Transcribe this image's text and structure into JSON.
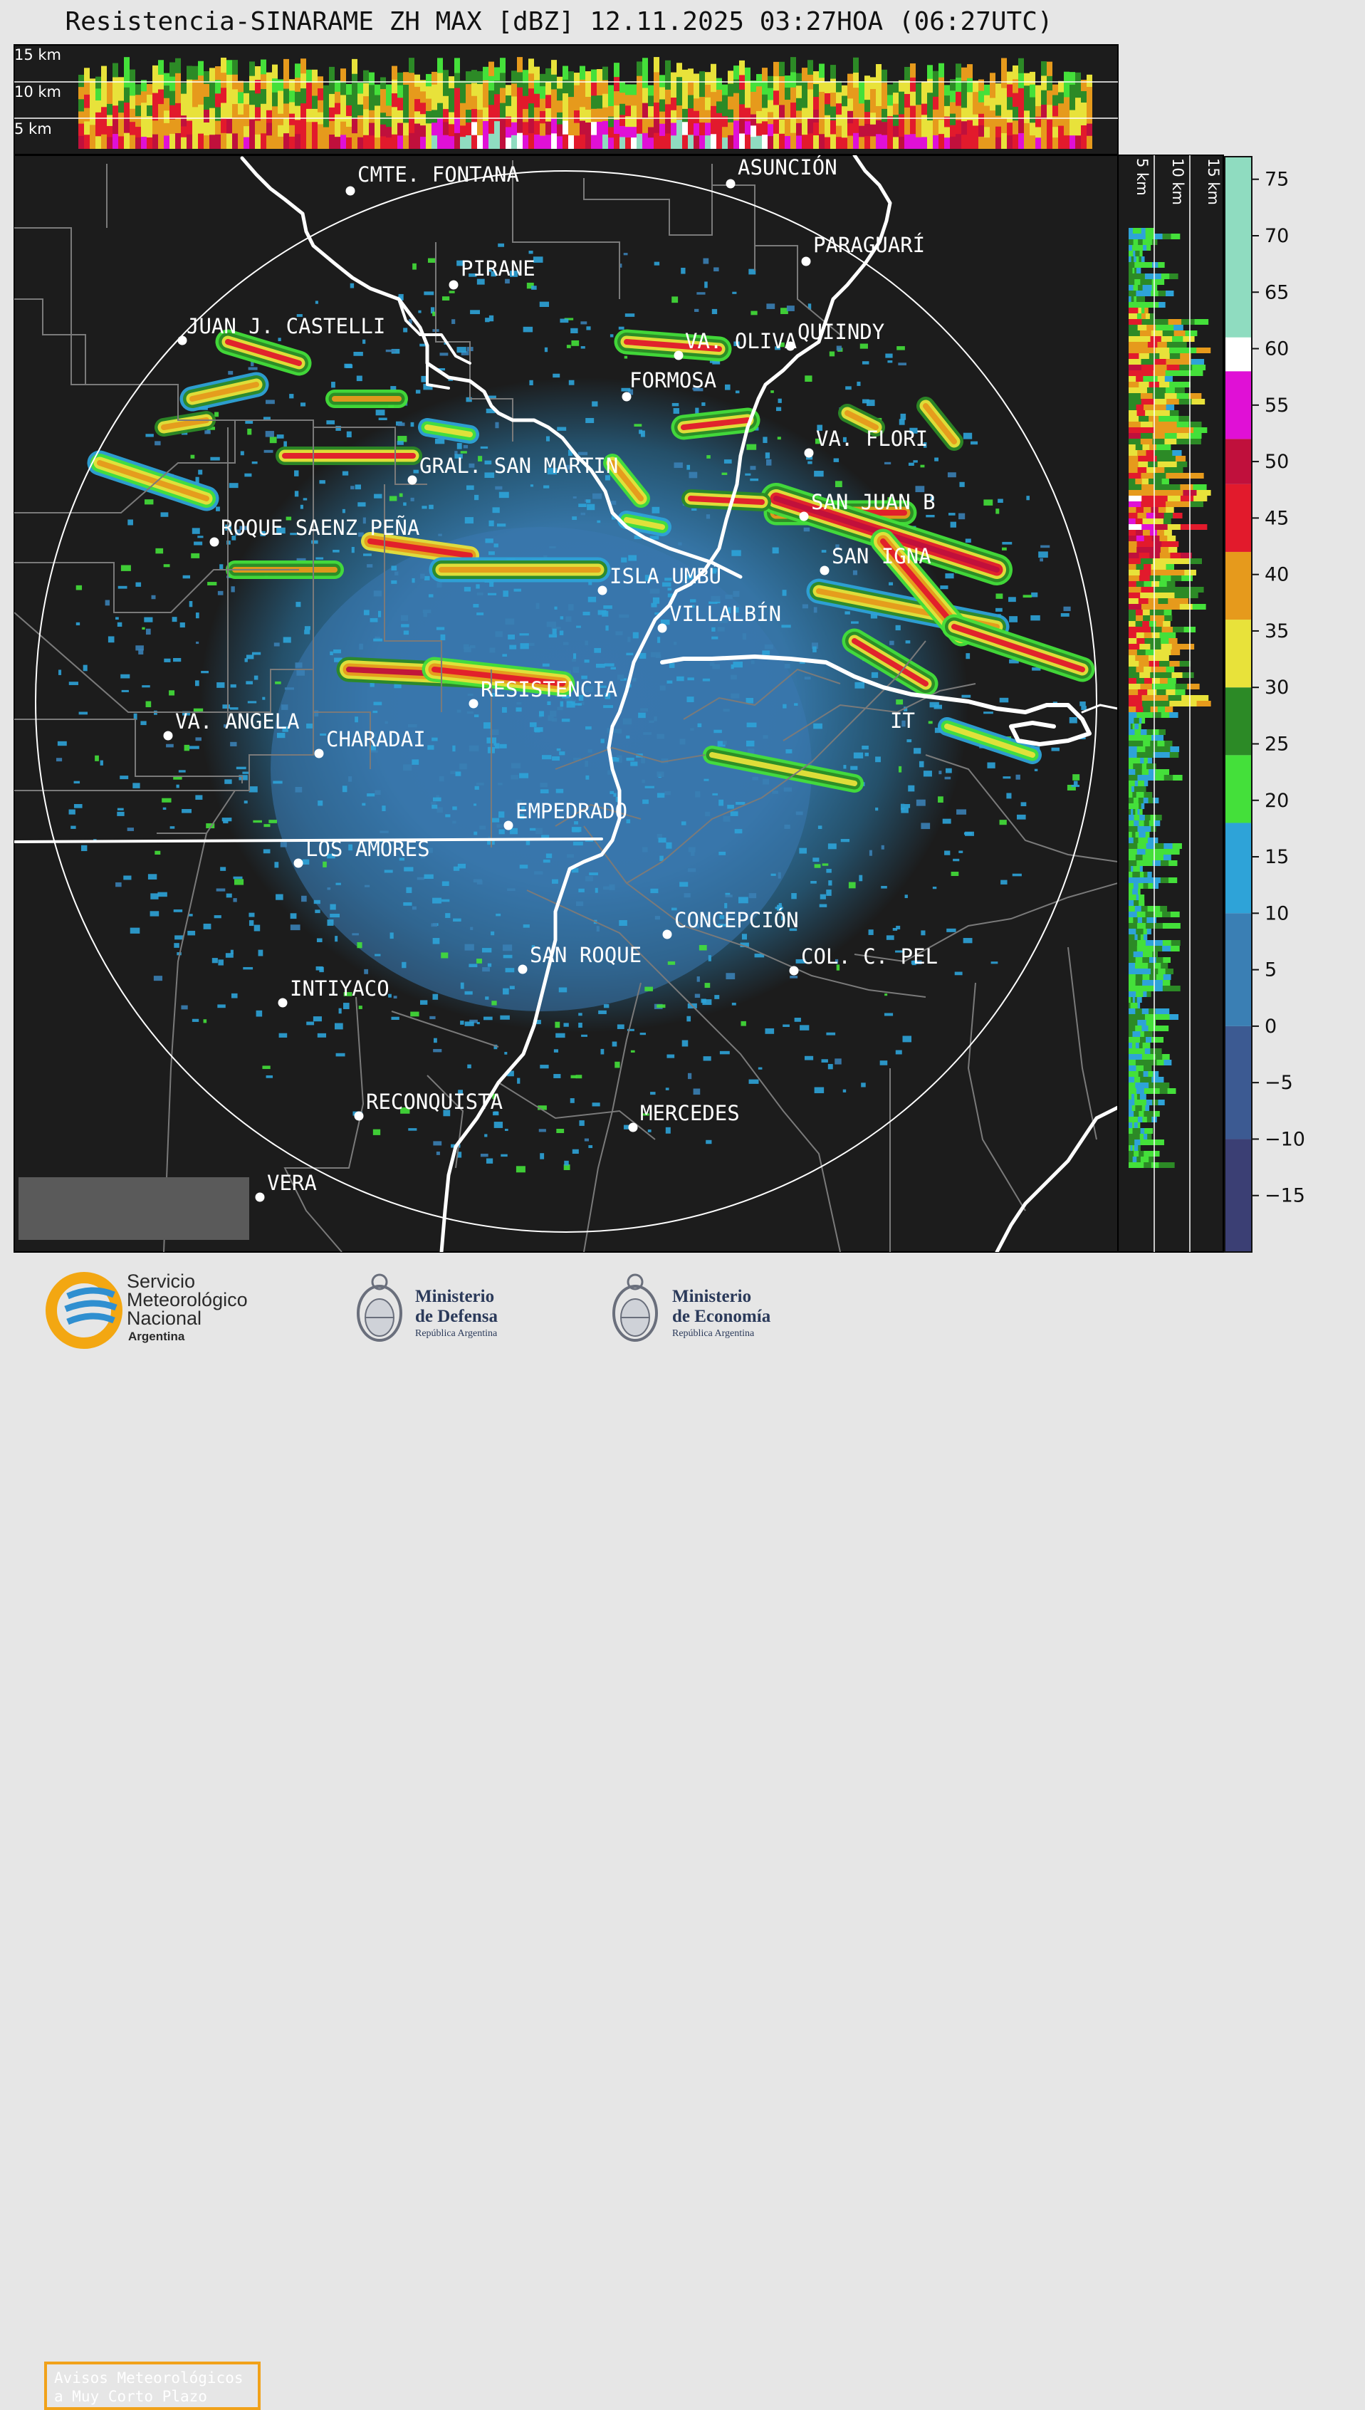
{
  "title": "Resistencia-SINARAME ZH MAX [dBZ] 12.11.2025 03:27HOA (06:27UTC)",
  "top_section": {
    "height_labels": [
      "15 km",
      "10 km",
      "5 km"
    ]
  },
  "side_section": {
    "height_labels": [
      "5 km",
      "10 km",
      "15 km"
    ]
  },
  "colorbar": {
    "unit": "dBZ",
    "ticks": [
      "75",
      "70",
      "65",
      "60",
      "55",
      "50",
      "45",
      "40",
      "35",
      "30",
      "25",
      "20",
      "15",
      "10",
      "5",
      "0",
      "−5",
      "−10",
      "−15"
    ],
    "tick_values": [
      75,
      70,
      65,
      60,
      55,
      50,
      45,
      40,
      35,
      30,
      25,
      20,
      15,
      10,
      5,
      0,
      -5,
      -10,
      -15
    ],
    "range": [
      -20,
      77
    ],
    "color_stops": [
      {
        "from": -20,
        "to": -10,
        "color": "#3b3f74"
      },
      {
        "from": -10,
        "to": 0,
        "color": "#3c5a92"
      },
      {
        "from": 0,
        "to": 10,
        "color": "#3a7fb4"
      },
      {
        "from": 10,
        "to": 18,
        "color": "#2ea3d8"
      },
      {
        "from": 18,
        "to": 24,
        "color": "#44e03a"
      },
      {
        "from": 24,
        "to": 30,
        "color": "#2c8a26"
      },
      {
        "from": 30,
        "to": 36,
        "color": "#e8e23a"
      },
      {
        "from": 36,
        "to": 42,
        "color": "#e69a1c"
      },
      {
        "from": 42,
        "to": 48,
        "color": "#e21a2c"
      },
      {
        "from": 48,
        "to": 52,
        "color": "#c0103c"
      },
      {
        "from": 52,
        "to": 58,
        "color": "#e010d6"
      },
      {
        "from": 58,
        "to": 61,
        "color": "#ffffff"
      },
      {
        "from": 61,
        "to": 77,
        "color": "#8fdcc0"
      }
    ]
  },
  "places": [
    {
      "name": "CMTE. FONTANA"
    },
    {
      "name": "ASUNCIÓN"
    },
    {
      "name": "PIRANE"
    },
    {
      "name": "PARAGUARÍ"
    },
    {
      "name": "JUAN J. CASTELLI"
    },
    {
      "name": "VA. OLIVA"
    },
    {
      "name": "QUIINDY"
    },
    {
      "name": "FORMOSA"
    },
    {
      "name": "VA. FLORI"
    },
    {
      "name": "GRAL. SAN MARTIN"
    },
    {
      "name": "SAN JUAN B"
    },
    {
      "name": "ROQUE SAENZ PEÑA"
    },
    {
      "name": "SAN IGNA"
    },
    {
      "name": "ISLA UMBÚ"
    },
    {
      "name": "VILLALBÍN"
    },
    {
      "name": "RESISTENCIA"
    },
    {
      "name": "VA. ANGELA"
    },
    {
      "name": "CHARADAI"
    },
    {
      "name": "IT"
    },
    {
      "name": "EMPEDRADO"
    },
    {
      "name": "LOS AMORES"
    },
    {
      "name": "CONCEPCIÓN"
    },
    {
      "name": "SAN ROQUE"
    },
    {
      "name": "COL. C. PEL"
    },
    {
      "name": "INTIYACO"
    },
    {
      "name": "RECONQUISTA"
    },
    {
      "name": "MERCEDES"
    },
    {
      "name": "VERA"
    }
  ],
  "notice": {
    "line1": "Avisos Meteorológicos",
    "line2": "a Muy Corto Plazo"
  },
  "footer": {
    "smn": {
      "line1": "Servicio",
      "line2": "Meteorológico",
      "line3": "Nacional",
      "line4": "Argentina"
    },
    "defensa": {
      "line1": "Ministerio",
      "line2": "de Defensa",
      "line3": "República Argentina"
    },
    "economia": {
      "line1": "Ministerio",
      "line2": "de Economía",
      "line3": "República Argentina"
    }
  },
  "colors": {
    "panel_bg": "#1c1c1c",
    "river": "#ffffff",
    "border": "#7a7a7a",
    "smn_blue": "#2f8fd0",
    "smn_orange": "#f3a712"
  }
}
